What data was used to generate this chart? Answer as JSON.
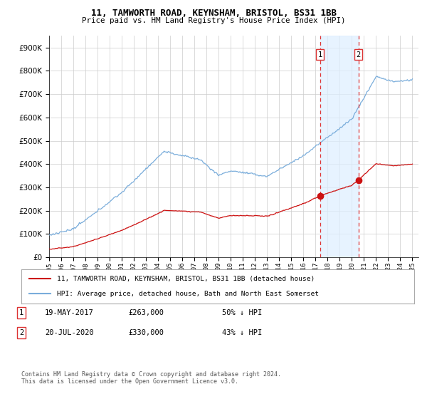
{
  "title": "11, TAMWORTH ROAD, KEYNSHAM, BRISTOL, BS31 1BB",
  "subtitle": "Price paid vs. HM Land Registry's House Price Index (HPI)",
  "hpi_label": "HPI: Average price, detached house, Bath and North East Somerset",
  "property_label": "11, TAMWORTH ROAD, KEYNSHAM, BRISTOL, BS31 1BB (detached house)",
  "hpi_color": "#7aaddb",
  "hpi_shade_color": "#ddeeff",
  "property_color": "#cc1111",
  "vline_color": "#dd3333",
  "sale1_date_num": 2017.37,
  "sale1_price": 263000,
  "sale2_date_num": 2020.54,
  "sale2_price": 330000,
  "ylim": [
    0,
    950000
  ],
  "yticks": [
    0,
    100000,
    200000,
    300000,
    400000,
    500000,
    600000,
    700000,
    800000,
    900000
  ],
  "xlim_start": 1995.0,
  "xlim_end": 2025.5,
  "footer": "Contains HM Land Registry data © Crown copyright and database right 2024.\nThis data is licensed under the Open Government Licence v3.0.",
  "background_color": "#ffffff",
  "grid_color": "#cccccc"
}
